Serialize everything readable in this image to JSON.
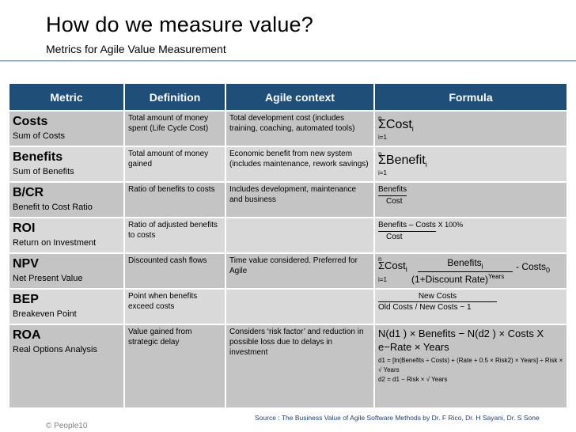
{
  "title": "How do we measure value?",
  "subtitle": "Metrics for Agile Value Measurement",
  "table": {
    "headers": [
      "Metric",
      "Definition",
      "Agile context",
      "Formula"
    ],
    "rows": [
      {
        "name": "Costs",
        "full": "Sum of Costs",
        "definition": "Total amount of money spent (Life Cycle Cost)",
        "context": "Total development cost (includes training, coaching, automated tools)",
        "formula": {
          "n": "n",
          "expr": "ΣCost",
          "sub": "i",
          "lower": "i=1"
        }
      },
      {
        "name": "Benefits",
        "full": "Sum of Benefits",
        "definition": "Total amount of money gained",
        "context": "Economic benefit from new system (includes maintenance, rework savings)",
        "formula": {
          "n": "n",
          "expr": "ΣBenefit",
          "sub": "i",
          "lower": "i=1"
        }
      },
      {
        "name": "B/CR",
        "full": "Benefit to Cost Ratio",
        "definition": "Ratio of benefits to costs",
        "context": "Includes development, maintenance and business",
        "formula": {
          "num": "Benefits",
          "den": "Cost"
        }
      },
      {
        "name": "ROI",
        "full": "Return on Investment",
        "definition": "Ratio of adjusted benefits to costs",
        "context": "",
        "formula": {
          "num": "Benefits – Costs",
          "den": "Cost",
          "suffix": "X 100%"
        }
      },
      {
        "name": "NPV",
        "full": "Net Present Value",
        "definition": "Discounted cash flows",
        "context": "Time value considered. Preferred for Agile",
        "formula": {
          "n": "n",
          "lower": "i=1",
          "cost": "ΣCost",
          "costsub": "i",
          "num": "Benefits",
          "numsub": "i",
          "den": "(1+Discount Rate)",
          "densup": "Years",
          "tail": "- Costs",
          "tailsub": "0"
        }
      },
      {
        "name": "BEP",
        "full": "Breakeven Point",
        "definition": "Point when benefits exceed costs",
        "context": "",
        "formula": {
          "num": "New Costs",
          "den": "Old Costs / New Costs − 1"
        }
      },
      {
        "name": "ROA",
        "full": "Real Options Analysis",
        "definition": "Value gained from strategic delay",
        "context": "Considers ‘risk factor’ and reduction in possible loss due to delays in investment",
        "formula": {
          "line1": "N(d1 ) × Benefits − N(d2 ) × Costs X",
          "line2": "e−Rate × Years",
          "d1": "d1 = [ln(Benefits ÷ Costs) + (Rate + 0.5 × Risk2) × Years] ÷ Risk × √ Years",
          "d2": "d2 = d1 − Risk × √ Years"
        }
      }
    ]
  },
  "source": "Source : The Business Value of Agile Software Methods by Dr. F Rico, Dr. H Sayani, Dr. S Sone",
  "copyright": "© People10"
}
